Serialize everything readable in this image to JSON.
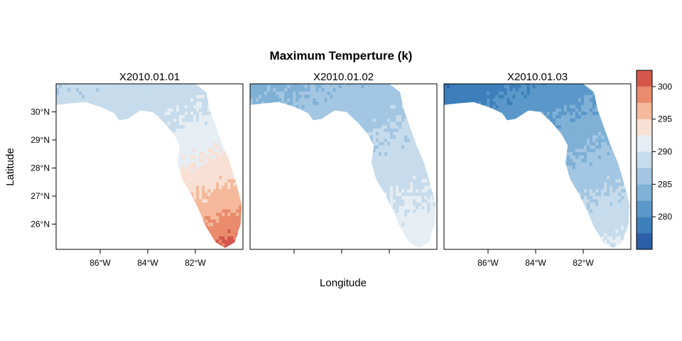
{
  "title": "Maximum Temperture (k)",
  "xlabel": "Longitude",
  "ylabel": "Latitude",
  "x_ticks": [
    -86,
    -84,
    -82
  ],
  "x_tick_labels": [
    "86°W",
    "84°W",
    "82°W"
  ],
  "y_ticks": [
    30,
    29,
    28,
    27,
    26
  ],
  "y_tick_labels": [
    "30°N",
    "29°N",
    "28°N",
    "27°N",
    "26°N"
  ],
  "colorbar": {
    "range": [
      275,
      302.5
    ],
    "breaks": [
      275,
      277.5,
      280,
      282.5,
      285,
      287.5,
      290,
      292.5,
      295,
      297.5,
      300,
      302.5
    ],
    "colors": [
      "#2c5fa7",
      "#3c7fba",
      "#5b98c9",
      "#7fb0d6",
      "#a3c6e2",
      "#c6dbeb",
      "#e6edf3",
      "#f9e0d4",
      "#f5b99b",
      "#e98b6c",
      "#d4574c",
      "#b51f2e"
    ],
    "tick_values": [
      280,
      285,
      290,
      295,
      300
    ],
    "tick_labels": [
      "280",
      "285",
      "290",
      "295",
      "300"
    ]
  },
  "panels": [
    {
      "label": "X2010.01.01",
      "temp_range": [
        288,
        302
      ]
    },
    {
      "label": "X2010.01.02",
      "temp_range": [
        284,
        292
      ]
    },
    {
      "label": "X2010.01.03",
      "temp_range": [
        278,
        291
      ]
    }
  ]
}
